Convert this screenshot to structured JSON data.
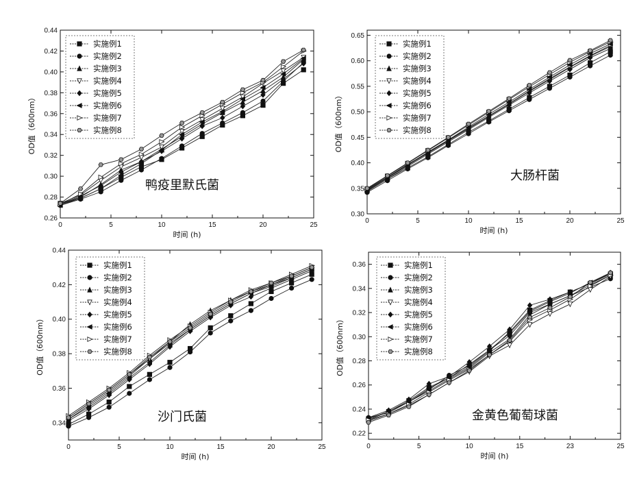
{
  "chart_data": [
    {
      "type": "line",
      "title": "鸭疫里默氏菌",
      "xlabel": "时间 (h)",
      "ylabel": "OD值（600nm）",
      "xlim": [
        0,
        25
      ],
      "ylim": [
        0.26,
        0.44
      ],
      "xticks": [
        0,
        5,
        10,
        15,
        20,
        25
      ],
      "yticks": [
        "0.26",
        "0.28",
        "0.30",
        "0.32",
        "0.34",
        "0.36",
        "0.38",
        "0.40",
        "0.42",
        "0.44"
      ],
      "legend_position": "top-left",
      "grid": false,
      "x": [
        0,
        2,
        4,
        6,
        8,
        10,
        12,
        14,
        16,
        18,
        20,
        22,
        24
      ],
      "series": [
        {
          "name": "实施例1",
          "marker": "square",
          "values": [
            0.273,
            0.279,
            0.288,
            0.299,
            0.309,
            0.316,
            0.327,
            0.338,
            0.349,
            0.358,
            0.368,
            0.389,
            0.402
          ]
        },
        {
          "name": "实施例2",
          "marker": "circle",
          "values": [
            0.272,
            0.278,
            0.285,
            0.296,
            0.306,
            0.317,
            0.329,
            0.341,
            0.351,
            0.361,
            0.372,
            0.391,
            0.409
          ]
        },
        {
          "name": "实施例3",
          "marker": "triangle-up",
          "values": [
            0.273,
            0.28,
            0.292,
            0.306,
            0.314,
            0.326,
            0.338,
            0.35,
            0.361,
            0.371,
            0.382,
            0.395,
            0.412
          ]
        },
        {
          "name": "实施例4",
          "marker": "triangle-down-open",
          "values": [
            0.274,
            0.282,
            0.296,
            0.309,
            0.318,
            0.328,
            0.343,
            0.354,
            0.365,
            0.376,
            0.389,
            0.401,
            0.414
          ]
        },
        {
          "name": "实施例5",
          "marker": "diamond",
          "values": [
            0.273,
            0.281,
            0.291,
            0.304,
            0.314,
            0.324,
            0.336,
            0.348,
            0.356,
            0.367,
            0.378,
            0.393,
            0.408
          ]
        },
        {
          "name": "实施例6",
          "marker": "triangle-left",
          "values": [
            0.272,
            0.279,
            0.288,
            0.301,
            0.312,
            0.325,
            0.34,
            0.352,
            0.362,
            0.374,
            0.385,
            0.398,
            0.413
          ]
        },
        {
          "name": "实施例7",
          "marker": "triangle-right-open",
          "values": [
            0.273,
            0.283,
            0.299,
            0.312,
            0.321,
            0.333,
            0.347,
            0.358,
            0.369,
            0.38,
            0.39,
            0.405,
            0.42
          ]
        },
        {
          "name": "实施例8",
          "marker": "hexagon",
          "values": [
            0.274,
            0.288,
            0.311,
            0.316,
            0.326,
            0.339,
            0.351,
            0.361,
            0.371,
            0.383,
            0.392,
            0.41,
            0.421
          ]
        }
      ]
    },
    {
      "type": "line",
      "title": "大肠杆菌",
      "xlabel": "时间 (h)",
      "ylabel": "OD值（600nm）",
      "xlim": [
        0,
        25
      ],
      "ylim": [
        0.3,
        0.66
      ],
      "xticks": [
        0,
        5,
        10,
        15,
        20,
        25
      ],
      "yticks": [
        "0.30",
        "0.35",
        "0.40",
        "0.45",
        "0.50",
        "0.55",
        "0.60",
        "0.65"
      ],
      "legend_position": "top-left",
      "grid": false,
      "x": [
        0,
        2,
        4,
        6,
        8,
        10,
        12,
        14,
        16,
        18,
        20,
        22,
        24
      ],
      "series": [
        {
          "name": "实施例1",
          "marker": "square",
          "values": [
            0.345,
            0.368,
            0.39,
            0.412,
            0.436,
            0.46,
            0.482,
            0.505,
            0.528,
            0.55,
            0.572,
            0.596,
            0.618
          ]
        },
        {
          "name": "实施例2",
          "marker": "circle",
          "values": [
            0.342,
            0.365,
            0.388,
            0.41,
            0.434,
            0.457,
            0.48,
            0.502,
            0.524,
            0.546,
            0.568,
            0.59,
            0.611
          ]
        },
        {
          "name": "实施例3",
          "marker": "triangle-up",
          "values": [
            0.348,
            0.372,
            0.397,
            0.42,
            0.444,
            0.468,
            0.492,
            0.516,
            0.541,
            0.565,
            0.588,
            0.61,
            0.63
          ]
        },
        {
          "name": "实施例4",
          "marker": "triangle-down-open",
          "values": [
            0.346,
            0.37,
            0.395,
            0.419,
            0.443,
            0.467,
            0.491,
            0.515,
            0.54,
            0.563,
            0.587,
            0.609,
            0.628
          ]
        },
        {
          "name": "实施例5",
          "marker": "diamond",
          "values": [
            0.344,
            0.368,
            0.393,
            0.417,
            0.441,
            0.465,
            0.489,
            0.513,
            0.537,
            0.56,
            0.583,
            0.606,
            0.624
          ]
        },
        {
          "name": "实施例6",
          "marker": "triangle-left",
          "values": [
            0.347,
            0.371,
            0.396,
            0.421,
            0.445,
            0.47,
            0.495,
            0.519,
            0.544,
            0.568,
            0.592,
            0.614,
            0.633
          ]
        },
        {
          "name": "实施例7",
          "marker": "triangle-right-open",
          "values": [
            0.349,
            0.374,
            0.399,
            0.424,
            0.449,
            0.474,
            0.499,
            0.524,
            0.549,
            0.573,
            0.597,
            0.618,
            0.637
          ]
        },
        {
          "name": "实施例8",
          "marker": "hexagon",
          "values": [
            0.35,
            0.375,
            0.4,
            0.425,
            0.45,
            0.476,
            0.501,
            0.526,
            0.552,
            0.577,
            0.601,
            0.62,
            0.64
          ]
        }
      ]
    },
    {
      "type": "line",
      "title": "沙门氏菌",
      "xlabel": "时间 (h)",
      "ylabel": "OD值（600nm）",
      "xlim": [
        0,
        25
      ],
      "ylim": [
        0.33,
        0.44
      ],
      "xticks": [
        0,
        5,
        10,
        15,
        20,
        25
      ],
      "yticks": [
        "0.34",
        "0.36",
        "0.38",
        "0.40",
        "0.42",
        "0.44"
      ],
      "legend_position": "top-left",
      "grid": false,
      "x": [
        0,
        2,
        4,
        6,
        8,
        10,
        12,
        14,
        16,
        18,
        20,
        22,
        24
      ],
      "series": [
        {
          "name": "实施例1",
          "marker": "square",
          "values": [
            0.339,
            0.345,
            0.352,
            0.361,
            0.368,
            0.375,
            0.383,
            0.395,
            0.402,
            0.409,
            0.416,
            0.421,
            0.426
          ]
        },
        {
          "name": "实施例2",
          "marker": "circle",
          "values": [
            0.338,
            0.343,
            0.349,
            0.357,
            0.365,
            0.372,
            0.381,
            0.392,
            0.399,
            0.405,
            0.412,
            0.418,
            0.423
          ]
        },
        {
          "name": "实施例3",
          "marker": "triangle-up",
          "values": [
            0.342,
            0.35,
            0.358,
            0.367,
            0.377,
            0.387,
            0.397,
            0.405,
            0.411,
            0.416,
            0.42,
            0.424,
            0.429
          ]
        },
        {
          "name": "实施例4",
          "marker": "triangle-down-open",
          "values": [
            0.343,
            0.351,
            0.359,
            0.368,
            0.377,
            0.386,
            0.394,
            0.402,
            0.409,
            0.415,
            0.42,
            0.425,
            0.43
          ]
        },
        {
          "name": "实施例5",
          "marker": "diamond",
          "values": [
            0.341,
            0.348,
            0.356,
            0.365,
            0.374,
            0.384,
            0.393,
            0.401,
            0.408,
            0.413,
            0.418,
            0.423,
            0.428
          ]
        },
        {
          "name": "实施例6",
          "marker": "triangle-left",
          "values": [
            0.342,
            0.349,
            0.357,
            0.366,
            0.375,
            0.385,
            0.394,
            0.402,
            0.409,
            0.415,
            0.419,
            0.424,
            0.429
          ]
        },
        {
          "name": "实施例7",
          "marker": "triangle-right-open",
          "values": [
            0.344,
            0.352,
            0.36,
            0.369,
            0.379,
            0.388,
            0.396,
            0.404,
            0.411,
            0.417,
            0.421,
            0.426,
            0.431
          ]
        },
        {
          "name": "实施例8",
          "marker": "hexagon",
          "values": [
            0.343,
            0.351,
            0.359,
            0.368,
            0.378,
            0.387,
            0.395,
            0.403,
            0.41,
            0.416,
            0.421,
            0.425,
            0.43
          ]
        }
      ]
    },
    {
      "type": "line",
      "title": "金黄色葡萄球菌",
      "xlabel": "时间 (h)",
      "ylabel": "OD值（600nm）",
      "xlim": [
        0,
        25
      ],
      "ylim": [
        0.215,
        0.37
      ],
      "xticks": [
        "0",
        "5",
        "10",
        "15",
        "20",
        "23",
        "25"
      ],
      "xtick_values": [
        0,
        5,
        10,
        15,
        20,
        25
      ],
      "xtick_labels_shown": [
        "0",
        "5",
        "10",
        "15",
        "23",
        "25"
      ],
      "yticks": [
        "0.22",
        "0.24",
        "0.26",
        "0.28",
        "0.30",
        "0.32",
        "0.34",
        "0.36"
      ],
      "legend_position": "top-left",
      "grid": false,
      "x": [
        0,
        2,
        4,
        6,
        8,
        10,
        12,
        14,
        16,
        18,
        20,
        22,
        24
      ],
      "series": [
        {
          "name": "实施例1",
          "marker": "square",
          "values": [
            0.232,
            0.238,
            0.247,
            0.258,
            0.266,
            0.275,
            0.288,
            0.304,
            0.322,
            0.33,
            0.337,
            0.344,
            0.352
          ]
        },
        {
          "name": "实施例2",
          "marker": "circle",
          "values": [
            0.233,
            0.237,
            0.246,
            0.256,
            0.268,
            0.276,
            0.289,
            0.301,
            0.32,
            0.327,
            0.334,
            0.341,
            0.348
          ]
        },
        {
          "name": "实施例3",
          "marker": "triangle-up",
          "values": [
            0.231,
            0.238,
            0.246,
            0.255,
            0.265,
            0.274,
            0.287,
            0.298,
            0.318,
            0.327,
            0.334,
            0.343,
            0.351
          ]
        },
        {
          "name": "实施例4",
          "marker": "triangle-down-open",
          "values": [
            0.23,
            0.236,
            0.243,
            0.252,
            0.262,
            0.271,
            0.284,
            0.293,
            0.31,
            0.319,
            0.327,
            0.339,
            0.35
          ]
        },
        {
          "name": "实施例5",
          "marker": "diamond",
          "values": [
            0.233,
            0.239,
            0.248,
            0.261,
            0.267,
            0.279,
            0.292,
            0.306,
            0.326,
            0.331,
            0.337,
            0.344,
            0.353
          ]
        },
        {
          "name": "实施例6",
          "marker": "triangle-left",
          "values": [
            0.232,
            0.238,
            0.246,
            0.257,
            0.266,
            0.277,
            0.289,
            0.303,
            0.321,
            0.329,
            0.336,
            0.345,
            0.352
          ]
        },
        {
          "name": "实施例7",
          "marker": "triangle-right-open",
          "values": [
            0.231,
            0.236,
            0.244,
            0.254,
            0.264,
            0.273,
            0.285,
            0.296,
            0.314,
            0.322,
            0.331,
            0.342,
            0.351
          ]
        },
        {
          "name": "实施例8",
          "marker": "hexagon",
          "values": [
            0.229,
            0.235,
            0.242,
            0.252,
            0.262,
            0.272,
            0.285,
            0.297,
            0.316,
            0.324,
            0.333,
            0.345,
            0.353
          ]
        }
      ]
    }
  ]
}
